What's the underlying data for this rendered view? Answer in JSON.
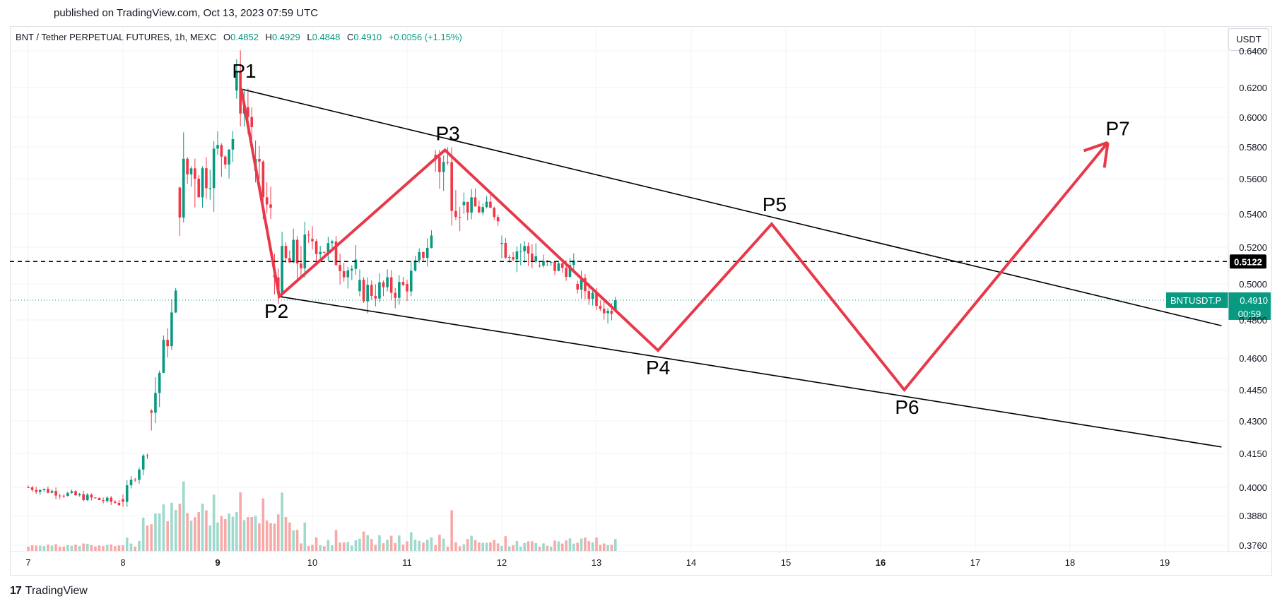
{
  "header": {
    "published": "published on TradingView.com, Oct 13, 2023 07:59 UTC"
  },
  "legend": {
    "symbol": "BNT / Tether PERPETUAL FUTURES, 1h, MEXC",
    "open_label": "O",
    "open": "0.4852",
    "high_label": "H",
    "high": "0.4929",
    "low_label": "L",
    "low": "0.4848",
    "close_label": "C",
    "close": "0.4910",
    "change": "+0.0056 (+1.15%)"
  },
  "toolbar": {
    "currency_button": "USDT"
  },
  "footer": {
    "logo_glyph": "17",
    "brand": "TradingView"
  },
  "colors": {
    "up": "#089981",
    "down": "#f23645",
    "pattern": "#e8394a",
    "trendline": "#000000",
    "grid": "#f0f3fa"
  },
  "chart_data": {
    "type": "candlestick",
    "y_axis": {
      "labels": [
        "0.6400",
        "0.6200",
        "0.6000",
        "0.5800",
        "0.5600",
        "0.5400",
        "0.5200",
        "0.5000",
        "0.4800",
        "0.4600",
        "0.4450",
        "0.4300",
        "0.4150",
        "0.4000",
        "0.3880",
        "0.3760"
      ],
      "unit": "USDT"
    },
    "x_axis": {
      "labels": [
        "7",
        "8",
        "9",
        "10",
        "11",
        "12",
        "13",
        "14",
        "15",
        "16",
        "17",
        "18",
        "19"
      ],
      "bold": [
        "9",
        "16"
      ]
    },
    "horizontal_line": {
      "value": 0.5122,
      "label": "0.5122",
      "style": "dashed"
    },
    "price_tag": {
      "symbol": "BNTUSDT.P",
      "value": "0.4910",
      "countdown": "00:59"
    },
    "candles_ohlc_approx": [
      {
        "day": 7.0,
        "o": 0.4,
        "h": 0.401,
        "l": 0.399,
        "c": 0.4
      },
      {
        "day": 8.0,
        "o": 0.393,
        "h": 0.396,
        "l": 0.391,
        "c": 0.395
      },
      {
        "day": 8.3,
        "o": 0.42,
        "h": 0.44,
        "l": 0.415,
        "c": 0.435
      },
      {
        "day": 8.6,
        "o": 0.5,
        "h": 0.56,
        "l": 0.495,
        "c": 0.555
      },
      {
        "day": 8.8,
        "o": 0.575,
        "h": 0.605,
        "l": 0.56,
        "c": 0.56
      },
      {
        "day": 9.2,
        "o": 0.59,
        "h": 0.625,
        "l": 0.585,
        "c": 0.618
      },
      {
        "day": 9.4,
        "o": 0.59,
        "h": 0.6,
        "l": 0.56,
        "c": 0.565
      },
      {
        "day": 9.6,
        "o": 0.53,
        "h": 0.54,
        "l": 0.5,
        "c": 0.505
      },
      {
        "day": 10.0,
        "o": 0.52,
        "h": 0.535,
        "l": 0.51,
        "c": 0.525
      },
      {
        "day": 10.5,
        "o": 0.505,
        "h": 0.512,
        "l": 0.492,
        "c": 0.496
      },
      {
        "day": 11.0,
        "o": 0.498,
        "h": 0.506,
        "l": 0.49,
        "c": 0.5
      },
      {
        "day": 11.3,
        "o": 0.53,
        "h": 0.585,
        "l": 0.525,
        "c": 0.575
      },
      {
        "day": 11.6,
        "o": 0.55,
        "h": 0.555,
        "l": 0.54,
        "c": 0.545
      },
      {
        "day": 12.0,
        "o": 0.54,
        "h": 0.545,
        "l": 0.52,
        "c": 0.522
      },
      {
        "day": 12.4,
        "o": 0.515,
        "h": 0.518,
        "l": 0.505,
        "c": 0.51
      },
      {
        "day": 12.8,
        "o": 0.508,
        "h": 0.512,
        "l": 0.496,
        "c": 0.5
      },
      {
        "day": 13.2,
        "o": 0.485,
        "h": 0.4929,
        "l": 0.4848,
        "c": 0.491
      }
    ],
    "pattern_points": [
      {
        "name": "P1",
        "day": 9.25,
        "price": 0.619
      },
      {
        "name": "P2",
        "day": 9.65,
        "price": 0.493
      },
      {
        "name": "P3",
        "day": 11.4,
        "price": 0.578
      },
      {
        "name": "P4",
        "day": 13.65,
        "price": 0.464
      },
      {
        "name": "P5",
        "day": 14.85,
        "price": 0.534
      },
      {
        "name": "P6",
        "day": 16.25,
        "price": 0.445
      },
      {
        "name": "P7",
        "day": 18.4,
        "price": 0.583
      }
    ],
    "trendlines": [
      {
        "from": {
          "day": 9.25,
          "price": 0.619
        },
        "to": {
          "day": 19.6,
          "price": 0.477
        }
      },
      {
        "from": {
          "day": 9.65,
          "price": 0.493
        },
        "to": {
          "day": 19.6,
          "price": 0.418
        }
      }
    ]
  }
}
